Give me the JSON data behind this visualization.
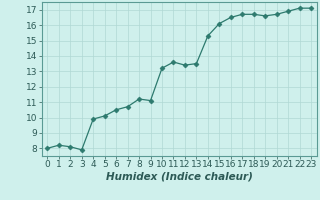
{
  "x": [
    0,
    1,
    2,
    3,
    4,
    5,
    6,
    7,
    8,
    9,
    10,
    11,
    12,
    13,
    14,
    15,
    16,
    17,
    18,
    19,
    20,
    21,
    22,
    23
  ],
  "y": [
    8.0,
    8.2,
    8.1,
    7.9,
    9.9,
    10.1,
    10.5,
    10.7,
    11.2,
    11.1,
    13.2,
    13.6,
    13.4,
    13.5,
    15.3,
    16.1,
    16.5,
    16.7,
    16.7,
    16.6,
    16.7,
    16.9,
    17.1,
    17.1
  ],
  "xlabel": "Humidex (Indice chaleur)",
  "ylim": [
    7.5,
    17.5
  ],
  "xlim": [
    -0.5,
    23.5
  ],
  "yticks": [
    8,
    9,
    10,
    11,
    12,
    13,
    14,
    15,
    16,
    17
  ],
  "xticks": [
    0,
    1,
    2,
    3,
    4,
    5,
    6,
    7,
    8,
    9,
    10,
    11,
    12,
    13,
    14,
    15,
    16,
    17,
    18,
    19,
    20,
    21,
    22,
    23
  ],
  "line_color": "#2d7a6e",
  "marker": "D",
  "marker_size": 2.5,
  "bg_color": "#cff0ec",
  "grid_color": "#b0d8d4",
  "xlabel_fontsize": 7.5,
  "tick_fontsize": 6.5,
  "xlabel_bold": true
}
